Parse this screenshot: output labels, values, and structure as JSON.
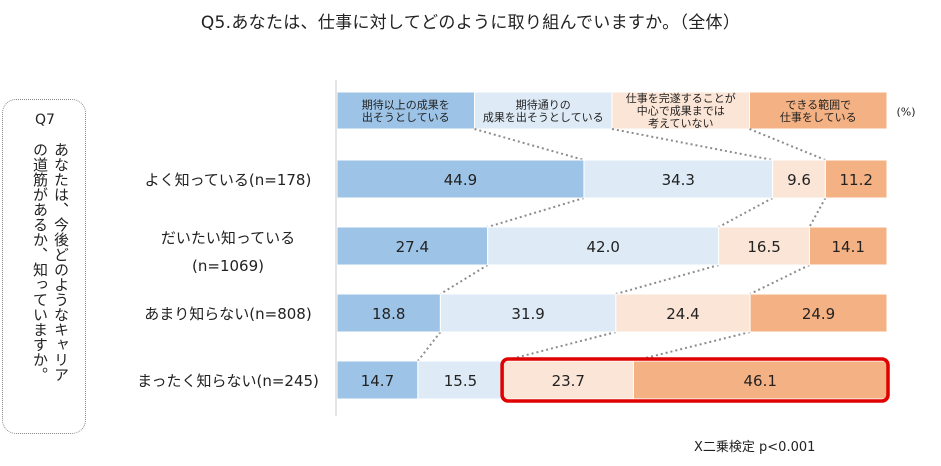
{
  "title": "Q5.あなたは、仕事に対してどのように取り組んでいますか。（全体）",
  "side_label": {
    "id": "Q7",
    "question": "あなたは、今後どのようなキャリアの道筋があるか、知っていますか。"
  },
  "footnote": "X二乗検定 p<0.001",
  "chart_data": {
    "type": "bar",
    "orientation": "horizontal-stacked-100",
    "unit": "(%)",
    "categories": [
      "よく知っている(n=178)",
      "だいたい知っている(n=1069)",
      "あまり知らない(n=808)",
      "まったく知らない(n=245)"
    ],
    "category_lines": [
      [
        "よく知っている(n=178)"
      ],
      [
        "だいたい知っている",
        "(n=1069)"
      ],
      [
        "あまり知らない(n=808)"
      ],
      [
        "まったく知らない(n=245)"
      ]
    ],
    "series": [
      {
        "name": "期待以上の成果を出そうとしている",
        "label_lines": [
          "期待以上の成果を",
          "出そうとしている"
        ],
        "values": [
          44.9,
          27.4,
          18.8,
          14.7
        ]
      },
      {
        "name": "期待通りの成果を出そうとしている",
        "label_lines": [
          "期待通りの",
          "成果を出そうとしている"
        ],
        "values": [
          34.3,
          42.0,
          31.9,
          15.5
        ]
      },
      {
        "name": "仕事を完遂することが中心で成果までは考えていない",
        "label_lines": [
          "仕事を完遂することが",
          "中心で成果までは",
          "考えていない"
        ],
        "values": [
          9.6,
          16.5,
          24.4,
          23.7
        ]
      },
      {
        "name": "できる範囲で仕事をしている",
        "label_lines": [
          "できる範囲で",
          "仕事をしている"
        ],
        "values": [
          11.2,
          14.1,
          24.9,
          46.1
        ]
      }
    ],
    "colors": [
      "#9dc3e6",
      "#deebf7",
      "#fbe5d6",
      "#f4b183"
    ],
    "highlight": {
      "category_index": 3,
      "series_indices": [
        2,
        3
      ],
      "color": "#e00000"
    },
    "xlim": [
      0,
      100
    ],
    "grid": false,
    "legend": "top"
  }
}
